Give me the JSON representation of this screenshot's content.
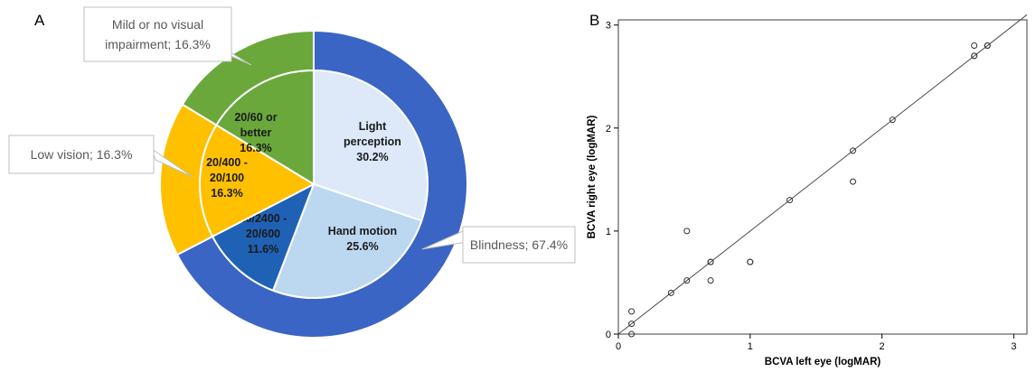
{
  "figure": {
    "panel_a_letter": "A",
    "panel_b_letter": "B"
  },
  "chart_data": [
    {
      "type": "pie",
      "variant": "nested-donut",
      "outer_ring": [
        {
          "label": "Mild or no visual impairment; 16.3%",
          "value": 16.3,
          "color": "#6aa83b"
        },
        {
          "label": "Low vision; 16.3%",
          "value": 16.3,
          "color": "#ffc000"
        },
        {
          "label": "Blindness; 67.4%",
          "value": 67.4,
          "color": "#3a65c4"
        }
      ],
      "inner_ring": [
        {
          "label_lines": [
            "Light",
            "perception",
            "30.2%"
          ],
          "value": 30.2,
          "color": "#dde9f8"
        },
        {
          "label_lines": [
            "Hand motion",
            "25.6%"
          ],
          "value": 25.6,
          "color": "#bcd7f0"
        },
        {
          "label_lines": [
            "20/2400 -",
            "20/600",
            "11.6%"
          ],
          "value": 11.6,
          "color": "#1f62b5"
        },
        {
          "label_lines": [
            "20/400 -",
            "20/100",
            "16.3%"
          ],
          "value": 16.3,
          "color": "#ffc000"
        },
        {
          "label_lines": [
            "20/60 or",
            "better",
            "16.3%"
          ],
          "value": 16.3,
          "color": "#6aa83b"
        }
      ]
    },
    {
      "type": "scatter",
      "xlabel": "BCVA left eye (logMAR)",
      "ylabel": "BCVA right eye (logMAR)",
      "xlim": [
        0,
        3.1
      ],
      "ylim": [
        0,
        3.05
      ],
      "xticks": [
        "0",
        "1",
        "2",
        "3"
      ],
      "yticks": [
        "0",
        "1",
        "2",
        "3"
      ],
      "fit_line": {
        "from": [
          0,
          0
        ],
        "to": [
          3.1,
          3.1
        ]
      },
      "points": [
        {
          "x": 0.1,
          "y": 0.0
        },
        {
          "x": 0.1,
          "y": 0.1
        },
        {
          "x": 0.1,
          "y": 0.22
        },
        {
          "x": 0.4,
          "y": 0.4
        },
        {
          "x": 0.52,
          "y": 0.52
        },
        {
          "x": 0.52,
          "y": 1.0
        },
        {
          "x": 0.7,
          "y": 0.52
        },
        {
          "x": 0.7,
          "y": 0.7
        },
        {
          "x": 0.7,
          "y": 0.7
        },
        {
          "x": 1.0,
          "y": 0.7
        },
        {
          "x": 1.0,
          "y": 0.7
        },
        {
          "x": 1.3,
          "y": 1.3
        },
        {
          "x": 1.78,
          "y": 1.48
        },
        {
          "x": 1.78,
          "y": 1.78
        },
        {
          "x": 2.08,
          "y": 2.08
        },
        {
          "x": 2.7,
          "y": 2.7
        },
        {
          "x": 2.7,
          "y": 2.7
        },
        {
          "x": 2.7,
          "y": 2.8
        },
        {
          "x": 2.8,
          "y": 2.8
        },
        {
          "x": 2.8,
          "y": 2.8
        }
      ]
    }
  ]
}
